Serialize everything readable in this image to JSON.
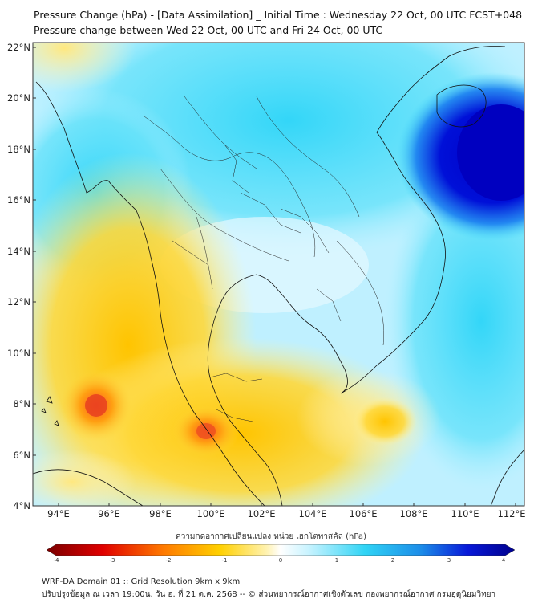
{
  "title": {
    "line1": "Pressure Change (hPa) - [Data Assimilation] _ Initial Time : Wednesday 22 Oct, 00 UTC FCST+048",
    "line2": "Pressure change between Wed 22 Oct, 00 UTC and Fri 24 Oct, 00 UTC"
  },
  "axes": {
    "lat_labels": [
      "22°N",
      "20°N",
      "18°N",
      "16°N",
      "14°N",
      "12°N",
      "10°N",
      "8°N",
      "6°N",
      "4°N"
    ],
    "lon_labels": [
      "94°E",
      "96°E",
      "98°E",
      "100°E",
      "102°E",
      "104°E",
      "106°E",
      "108°E",
      "110°E",
      "112°E"
    ]
  },
  "colorbar": {
    "label": "ความกดอากาศเปลี่ยนแปลง หน่วย เฮกโตพาสคัล (hPa)",
    "ticks": [
      "-4",
      "-3",
      "-2",
      "-1",
      "0",
      "1",
      "2",
      "3",
      "4"
    ],
    "min": -4,
    "max": 4
  },
  "footer": {
    "line1": "WRF-DA Domain 01 :: Grid Resolution 9km x 9km",
    "line2": "ปรับปรุงข้อมูล ณ เวลา 19:00น. วัน อ. ที่ 21 ต.ค. 2568 -- © ส่วนพยากรณ์อากาศเชิงตัวเลข กองพยากรณ์อากาศ กรมอุตุนิยมวิทยา"
  },
  "colors": {
    "negative_strong": "#7a0000",
    "negative": "#ff2a00",
    "near_zero_neg": "#ffe066",
    "zero": "#ffffff",
    "near_zero_pos": "#bff0ff",
    "positive": "#1ec8f0",
    "positive_strong": "#0000b0"
  }
}
